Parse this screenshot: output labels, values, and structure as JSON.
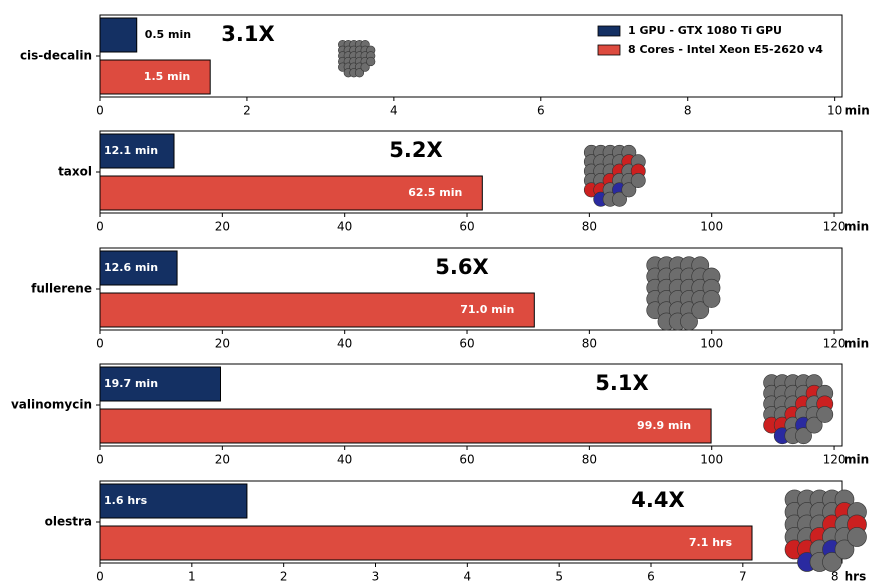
{
  "chart_data": [
    {
      "type": "bar",
      "orientation": "horizontal",
      "categories": [
        "cis-decalin"
      ],
      "series": [
        {
          "name": "1 GPU - GTX 1080 Ti GPU",
          "color": "#143063",
          "values": [
            0.5
          ],
          "value_labels": [
            "0.5 min"
          ]
        },
        {
          "name": "8 Cores - Intel Xeon E5-2620 v4",
          "color": "#dd4b3f",
          "values": [
            1.5
          ],
          "value_labels": [
            "1.5 min"
          ]
        }
      ],
      "annotation": "3.1X",
      "xlabel": "min",
      "xlim": [
        0,
        10.1
      ],
      "xticks": [
        0,
        2,
        4,
        6,
        8,
        10
      ],
      "legend": "upper right"
    },
    {
      "type": "bar",
      "orientation": "horizontal",
      "categories": [
        "taxol"
      ],
      "series": [
        {
          "color": "#143063",
          "values": [
            12.1
          ],
          "value_labels": [
            "12.1 min"
          ]
        },
        {
          "color": "#dd4b3f",
          "values": [
            62.5
          ],
          "value_labels": [
            "62.5 min"
          ]
        }
      ],
      "annotation": "5.2X",
      "xlabel": "min",
      "xlim": [
        0,
        121.3
      ],
      "xticks": [
        0,
        20,
        40,
        60,
        80,
        100,
        120
      ]
    },
    {
      "type": "bar",
      "orientation": "horizontal",
      "categories": [
        "fullerene"
      ],
      "series": [
        {
          "color": "#143063",
          "values": [
            12.6
          ],
          "value_labels": [
            "12.6 min"
          ]
        },
        {
          "color": "#dd4b3f",
          "values": [
            71.0
          ],
          "value_labels": [
            "71.0 min"
          ]
        }
      ],
      "annotation": "5.6X",
      "xlabel": "min",
      "xlim": [
        0,
        121.3
      ],
      "xticks": [
        0,
        20,
        40,
        60,
        80,
        100,
        120
      ]
    },
    {
      "type": "bar",
      "orientation": "horizontal",
      "categories": [
        "valinomycin"
      ],
      "series": [
        {
          "color": "#143063",
          "values": [
            19.7
          ],
          "value_labels": [
            "19.7 min"
          ]
        },
        {
          "color": "#dd4b3f",
          "values": [
            99.9
          ],
          "value_labels": [
            "99.9 min"
          ]
        }
      ],
      "annotation": "5.1X",
      "xlabel": "min",
      "xlim": [
        0,
        121.3
      ],
      "xticks": [
        0,
        20,
        40,
        60,
        80,
        100,
        120
      ]
    },
    {
      "type": "bar",
      "orientation": "horizontal",
      "categories": [
        "olestra"
      ],
      "series": [
        {
          "color": "#143063",
          "values": [
            1.6
          ],
          "value_labels": [
            "1.6 hrs"
          ]
        },
        {
          "color": "#dd4b3f",
          "values": [
            7.1
          ],
          "value_labels": [
            "7.1 hrs"
          ]
        }
      ],
      "annotation": "4.4X",
      "xlabel": "hrs",
      "xlim": [
        0,
        8.08
      ],
      "xticks": [
        0,
        1,
        2,
        3,
        4,
        5,
        6,
        7,
        8
      ]
    }
  ]
}
